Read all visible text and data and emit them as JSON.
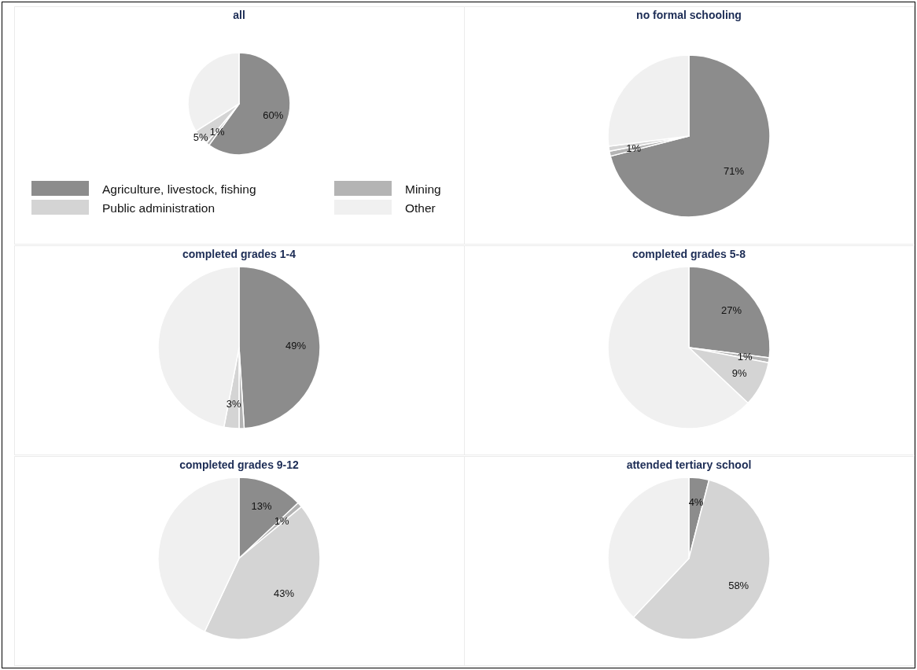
{
  "chart_data": [
    {
      "type": "pie",
      "title": "all",
      "categories": [
        "Agriculture, livestock, fishing",
        "Mining",
        "Public administration",
        "Other"
      ],
      "values": [
        60,
        1,
        5,
        34
      ],
      "colors": [
        "#8c8c8c",
        "#b4b4b4",
        "#d4d4d4",
        "#f0f0f0"
      ],
      "value_labels": [
        "60%",
        "1%",
        "5%",
        null
      ],
      "legend": "bottom"
    },
    {
      "type": "pie",
      "title": "no formal schooling",
      "categories": [
        null,
        null,
        null,
        null
      ],
      "values": [
        71,
        1,
        1,
        27
      ],
      "colors": [
        "#8c8c8c",
        "#b4b4b4",
        "#d4d4d4",
        "#f0f0f0"
      ],
      "value_labels": [
        "71%",
        "1%",
        null,
        null
      ]
    },
    {
      "type": "pie",
      "title": "completed grades 1-4",
      "categories": [
        null,
        null,
        null,
        null
      ],
      "values": [
        49,
        1,
        3,
        47
      ],
      "colors": [
        "#8c8c8c",
        "#b4b4b4",
        "#d4d4d4",
        "#f0f0f0"
      ],
      "value_labels": [
        "49%",
        null,
        "3%",
        null
      ]
    },
    {
      "type": "pie",
      "title": "completed grades 5-8",
      "categories": [
        null,
        null,
        null,
        null
      ],
      "values": [
        27,
        1,
        9,
        63
      ],
      "colors": [
        "#8c8c8c",
        "#b4b4b4",
        "#d4d4d4",
        "#f0f0f0"
      ],
      "value_labels": [
        "27%",
        "1%",
        "9%",
        null
      ]
    },
    {
      "type": "pie",
      "title": "completed grades 9-12",
      "categories": [
        null,
        null,
        null,
        null
      ],
      "values": [
        13,
        1,
        43,
        43
      ],
      "colors": [
        "#8c8c8c",
        "#b4b4b4",
        "#d4d4d4",
        "#f0f0f0"
      ],
      "value_labels": [
        "13%",
        "1%",
        "43%",
        null
      ]
    },
    {
      "type": "pie",
      "title": "attended tertiary school",
      "categories": [
        null,
        null,
        null,
        null
      ],
      "values": [
        4,
        0,
        58,
        38
      ],
      "colors": [
        "#8c8c8c",
        null,
        "#d4d4d4",
        "#f0f0f0"
      ],
      "value_labels": [
        "4%",
        null,
        "58%",
        null
      ]
    }
  ]
}
